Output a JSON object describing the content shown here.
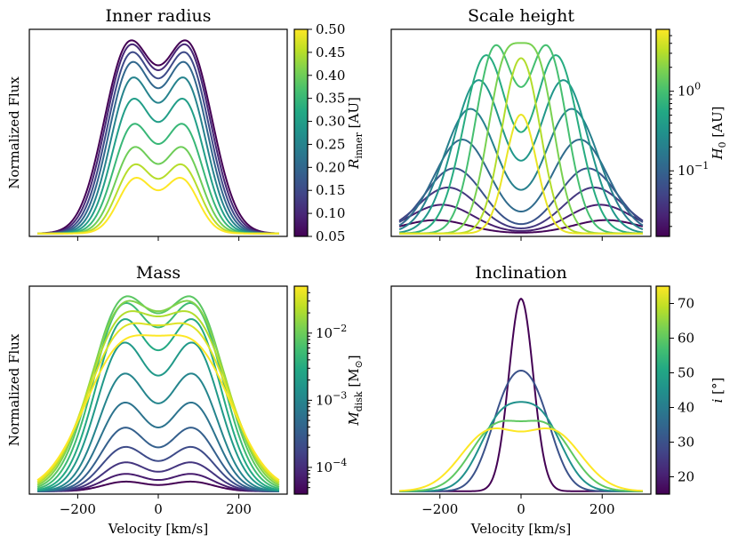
{
  "chart_data": [
    {
      "type": "line",
      "title": "Inner radius",
      "xlabel": "",
      "ylabel": "Normalized Flux",
      "xlim": [
        -320,
        320
      ],
      "ylim": [
        0,
        1.08
      ],
      "show_xticklabels": false,
      "show_ylabel": true,
      "colorbar": {
        "label": "R_inner [AU]",
        "label_main": "R",
        "label_sub": "inner",
        "label_rest": " [AU]",
        "scale": "linear",
        "range": [
          0.05,
          0.5
        ],
        "ticks": [
          {
            "value": 0.05,
            "label": "0.05"
          },
          {
            "value": 0.1,
            "label": "0.10"
          },
          {
            "value": 0.15,
            "label": "0.15"
          },
          {
            "value": 0.2,
            "label": "0.20"
          },
          {
            "value": 0.25,
            "label": "0.25"
          },
          {
            "value": 0.3,
            "label": "0.30"
          },
          {
            "value": 0.35,
            "label": "0.35"
          },
          {
            "value": 0.4,
            "label": "0.40"
          },
          {
            "value": 0.45,
            "label": "0.45"
          },
          {
            "value": 0.5,
            "label": "0.50"
          }
        ]
      },
      "series": [
        {
          "cval": 0.05,
          "peak_v": 75,
          "sigma": 60,
          "dip_frac": 0.87,
          "amp": 1.0
        },
        {
          "cval": 0.1,
          "peak_v": 73,
          "sigma": 58,
          "dip_frac": 0.87,
          "amp": 0.98
        },
        {
          "cval": 0.15,
          "peak_v": 71,
          "sigma": 56,
          "dip_frac": 0.87,
          "amp": 0.94
        },
        {
          "cval": 0.2,
          "peak_v": 69,
          "sigma": 54,
          "dip_frac": 0.87,
          "amp": 0.89
        },
        {
          "cval": 0.25,
          "peak_v": 67,
          "sigma": 52,
          "dip_frac": 0.87,
          "amp": 0.81
        },
        {
          "cval": 0.3,
          "peak_v": 65,
          "sigma": 50,
          "dip_frac": 0.87,
          "amp": 0.7
        },
        {
          "cval": 0.35,
          "peak_v": 63,
          "sigma": 48,
          "dip_frac": 0.87,
          "amp": 0.57
        },
        {
          "cval": 0.4,
          "peak_v": 61,
          "sigma": 46,
          "dip_frac": 0.87,
          "amp": 0.45
        },
        {
          "cval": 0.45,
          "peak_v": 59,
          "sigma": 44,
          "dip_frac": 0.87,
          "amp": 0.36
        },
        {
          "cval": 0.5,
          "peak_v": 57,
          "sigma": 42,
          "dip_frac": 0.87,
          "amp": 0.29
        }
      ]
    },
    {
      "type": "line",
      "title": "Scale height",
      "xlabel": "",
      "ylabel": "",
      "xlim": [
        -320,
        320
      ],
      "ylim": [
        0,
        1.08
      ],
      "show_xticklabels": false,
      "show_ylabel": false,
      "colorbar": {
        "label": "H_0 [AU]",
        "label_main": "H",
        "label_sub": "0",
        "label_rest": " [AU]",
        "scale": "log",
        "range": [
          0.015,
          6
        ],
        "ticks": [
          {
            "value": 0.1,
            "label": "10",
            "exp": "−1"
          },
          {
            "value": 1,
            "label": "10",
            "exp": "0"
          }
        ],
        "minor_ticks": [
          0.02,
          0.03,
          0.04,
          0.05,
          0.06,
          0.07,
          0.08,
          0.09,
          0.2,
          0.3,
          0.4,
          0.5,
          0.6,
          0.7,
          0.8,
          0.9,
          2,
          3,
          4,
          5
        ]
      },
      "series": [
        {
          "cval": 0.016,
          "peak_v": 210,
          "sigma": 80,
          "dip_frac": 0.9,
          "amp": 0.07
        },
        {
          "cval": 0.025,
          "peak_v": 195,
          "sigma": 78,
          "dip_frac": 0.78,
          "amp": 0.15
        },
        {
          "cval": 0.04,
          "peak_v": 180,
          "sigma": 75,
          "dip_frac": 0.66,
          "amp": 0.24
        },
        {
          "cval": 0.07,
          "peak_v": 165,
          "sigma": 72,
          "dip_frac": 0.55,
          "amp": 0.34
        },
        {
          "cval": 0.12,
          "peak_v": 145,
          "sigma": 70,
          "dip_frac": 0.47,
          "amp": 0.49
        },
        {
          "cval": 0.2,
          "peak_v": 125,
          "sigma": 67,
          "dip_frac": 0.45,
          "amp": 0.65
        },
        {
          "cval": 0.35,
          "peak_v": 105,
          "sigma": 62,
          "dip_frac": 0.47,
          "amp": 0.8
        },
        {
          "cval": 0.6,
          "peak_v": 87,
          "sigma": 55,
          "dip_frac": 0.51,
          "amp": 0.93
        },
        {
          "cval": 1.0,
          "peak_v": 65,
          "sigma": 48,
          "dip_frac": 0.73,
          "amp": 0.98
        },
        {
          "cval": 1.8,
          "peak_v": 42,
          "sigma": 42,
          "dip_frac": 0.87,
          "amp": 0.93
        },
        {
          "cval": 3.0,
          "peak_v": 22,
          "sigma": 39,
          "dip_frac": 0.97,
          "amp": 0.82
        },
        {
          "cval": 5.0,
          "peak_v": 0,
          "sigma": 38,
          "dip_frac": 1.0,
          "amp": 0.62
        }
      ]
    },
    {
      "type": "line",
      "title": "Mass",
      "xlabel": "Velocity [km/s]",
      "ylabel": "Normalized Flux",
      "xlim": [
        -320,
        320
      ],
      "ylim": [
        0,
        1.08
      ],
      "show_xticklabels": true,
      "show_ylabel": true,
      "xticks": [
        -200,
        0,
        200
      ],
      "xticklabels": [
        "−200",
        "0",
        "200"
      ],
      "colorbar": {
        "label": "M_disk [M_⊙]",
        "label_main": "M",
        "label_sub": "disk",
        "label_rest": " [M",
        "label_sun": "⊙",
        "label_close": "]",
        "scale": "log",
        "range": [
          4e-05,
          0.05
        ],
        "ticks": [
          {
            "value": 0.0001,
            "label": "10",
            "exp": "−4"
          },
          {
            "value": 0.001,
            "label": "10",
            "exp": "−3"
          },
          {
            "value": 0.01,
            "label": "10",
            "exp": "−2"
          }
        ],
        "minor_ticks": [
          5e-05,
          6e-05,
          7e-05,
          8e-05,
          9e-05,
          0.0002,
          0.0003,
          0.0004,
          0.0005,
          0.0006,
          0.0007,
          0.0008,
          0.0009,
          0.002,
          0.003,
          0.004,
          0.005,
          0.006,
          0.007,
          0.008,
          0.009,
          0.02,
          0.03,
          0.04
        ]
      },
      "series": [
        {
          "cval": 4e-05,
          "peak_v": 82,
          "sigma": 55,
          "dip_frac": 0.8,
          "amp": 0.05
        },
        {
          "cval": 7e-05,
          "peak_v": 82,
          "sigma": 55,
          "dip_frac": 0.8,
          "amp": 0.09
        },
        {
          "cval": 0.00012,
          "peak_v": 82,
          "sigma": 56,
          "dip_frac": 0.8,
          "amp": 0.15
        },
        {
          "cval": 0.0002,
          "peak_v": 83,
          "sigma": 57,
          "dip_frac": 0.8,
          "amp": 0.23
        },
        {
          "cval": 0.00035,
          "peak_v": 84,
          "sigma": 58,
          "dip_frac": 0.8,
          "amp": 0.33
        },
        {
          "cval": 0.0006,
          "peak_v": 85,
          "sigma": 60,
          "dip_frac": 0.8,
          "amp": 0.46
        },
        {
          "cval": 0.001,
          "peak_v": 86,
          "sigma": 62,
          "dip_frac": 0.8,
          "amp": 0.61
        },
        {
          "cval": 0.0018,
          "peak_v": 88,
          "sigma": 65,
          "dip_frac": 0.8,
          "amp": 0.77
        },
        {
          "cval": 0.003,
          "peak_v": 89,
          "sigma": 68,
          "dip_frac": 0.8,
          "amp": 0.89
        },
        {
          "cval": 0.005,
          "peak_v": 90,
          "sigma": 72,
          "dip_frac": 0.82,
          "amp": 0.97
        },
        {
          "cval": 0.008,
          "peak_v": 91,
          "sigma": 76,
          "dip_frac": 0.84,
          "amp": 1.0
        },
        {
          "cval": 0.013,
          "peak_v": 92,
          "sigma": 80,
          "dip_frac": 0.86,
          "amp": 0.97
        },
        {
          "cval": 0.022,
          "peak_v": 93,
          "sigma": 84,
          "dip_frac": 0.88,
          "amp": 0.91
        },
        {
          "cval": 0.035,
          "peak_v": 94,
          "sigma": 88,
          "dip_frac": 0.9,
          "amp": 0.84
        },
        {
          "cval": 0.05,
          "peak_v": 95,
          "sigma": 92,
          "dip_frac": 0.92,
          "amp": 0.77
        }
      ]
    },
    {
      "type": "line",
      "title": "Inclination",
      "xlabel": "Velocity [km/s]",
      "ylabel": "",
      "xlim": [
        -320,
        320
      ],
      "ylim": [
        0,
        1.08
      ],
      "show_xticklabels": true,
      "show_ylabel": false,
      "xticks": [
        -200,
        0,
        200
      ],
      "xticklabels": [
        "−200",
        "0",
        "200"
      ],
      "colorbar": {
        "label": "i [°]",
        "label_main": "i",
        "label_sub": "",
        "label_rest": " [°]",
        "scale": "linear",
        "range": [
          15,
          75
        ],
        "ticks": [
          {
            "value": 20,
            "label": "20"
          },
          {
            "value": 30,
            "label": "30"
          },
          {
            "value": 40,
            "label": "40"
          },
          {
            "value": 50,
            "label": "50"
          },
          {
            "value": 60,
            "label": "60"
          },
          {
            "value": 70,
            "label": "70"
          }
        ]
      },
      "series": [
        {
          "cval": 15,
          "peak_v": 0,
          "sigma": 30,
          "dip_frac": 1.0,
          "amp": 1.0
        },
        {
          "cval": 30,
          "peak_v": 35,
          "sigma": 46,
          "dip_frac": 0.92,
          "amp": 0.55
        },
        {
          "cval": 45,
          "peak_v": 50,
          "sigma": 54,
          "dip_frac": 0.89,
          "amp": 0.42
        },
        {
          "cval": 60,
          "peak_v": 65,
          "sigma": 62,
          "dip_frac": 0.86,
          "amp": 0.35
        },
        {
          "cval": 75,
          "peak_v": 80,
          "sigma": 70,
          "dip_frac": 0.84,
          "amp": 0.32
        }
      ]
    }
  ]
}
